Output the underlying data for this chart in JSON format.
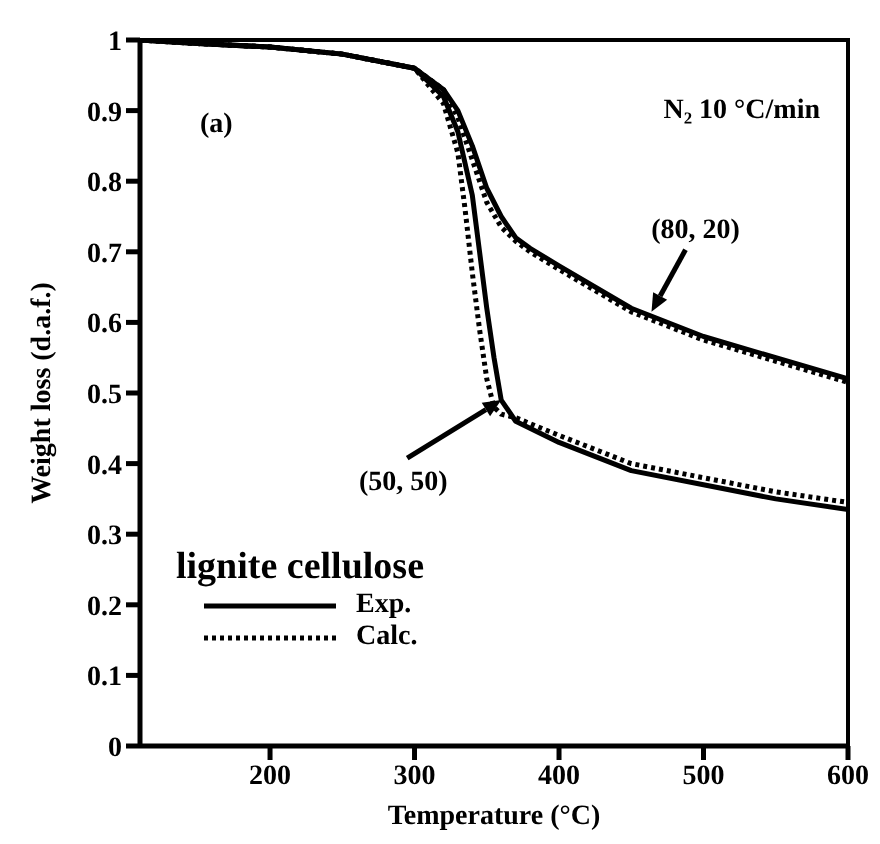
{
  "chart_data": {
    "type": "line",
    "xlabel": "Temperature (°C)",
    "ylabel": "Weight loss (d.a.f.)",
    "legend_title": "lignite cellulose",
    "legend": "bottom left",
    "marker": "none",
    "xlim": [
      110,
      600
    ],
    "xticks": [
      200,
      300,
      400,
      500,
      600
    ],
    "ylim": [
      0,
      1
    ],
    "yticks": [
      0,
      0.1,
      0.2,
      0.3,
      0.4,
      0.5,
      0.6,
      0.7,
      0.8,
      0.9,
      1
    ],
    "annotations": [
      "(a)",
      "N₂ 10 °C/min",
      {
        "text": "(80, 20)",
        "x": 464,
        "y": 0.615
      },
      {
        "text": "(50, 50)",
        "x": 360,
        "y": 0.49
      }
    ],
    "series": [
      {
        "name": "Exp.",
        "color": "#000000",
        "line_style": "solid",
        "x": [
          110,
          150,
          200,
          250,
          300,
          320,
          330,
          340,
          350,
          360,
          370,
          380,
          400,
          450,
          500,
          550,
          600
        ],
        "values": [
          1,
          0.995,
          0.99,
          0.98,
          0.96,
          0.93,
          0.9,
          0.85,
          0.79,
          0.75,
          0.72,
          0.705,
          0.68,
          0.62,
          0.58,
          0.55,
          0.52
        ]
      },
      {
        "name": "Calc.",
        "color": "#000000",
        "line_style": "dotted",
        "x": [
          110,
          150,
          200,
          250,
          300,
          320,
          330,
          340,
          350,
          360,
          370,
          380,
          400,
          450,
          500,
          550,
          600
        ],
        "values": [
          1,
          0.995,
          0.99,
          0.98,
          0.96,
          0.93,
          0.89,
          0.83,
          0.77,
          0.735,
          0.715,
          0.7,
          0.675,
          0.615,
          0.575,
          0.545,
          0.515
        ]
      },
      {
        "color": "#000000",
        "line_style": "solid",
        "x": [
          110,
          150,
          200,
          250,
          300,
          320,
          330,
          340,
          345,
          350,
          355,
          360,
          370,
          400,
          450,
          500,
          550,
          600
        ],
        "values": [
          1,
          0.995,
          0.99,
          0.98,
          0.96,
          0.92,
          0.87,
          0.78,
          0.7,
          0.62,
          0.55,
          0.49,
          0.46,
          0.43,
          0.39,
          0.37,
          0.35,
          0.335
        ]
      },
      {
        "color": "#000000",
        "line_style": "dotted",
        "x": [
          110,
          150,
          200,
          250,
          300,
          320,
          330,
          335,
          340,
          345,
          350,
          355,
          360,
          370,
          400,
          450,
          500,
          550,
          600
        ],
        "values": [
          1,
          0.995,
          0.99,
          0.98,
          0.96,
          0.91,
          0.84,
          0.76,
          0.67,
          0.59,
          0.52,
          0.48,
          0.47,
          0.465,
          0.44,
          0.4,
          0.38,
          0.36,
          0.345
        ]
      }
    ]
  }
}
